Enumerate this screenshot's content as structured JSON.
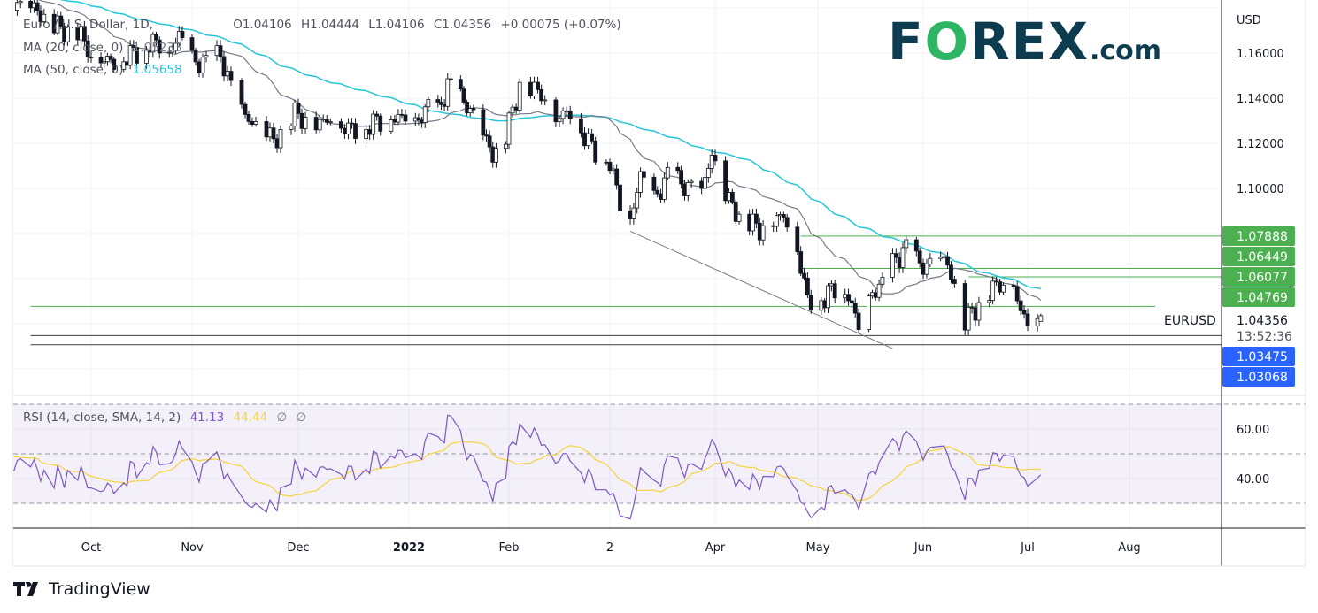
{
  "header": {
    "title": "Euro / U.S. Dollar, 1D, ",
    "ohlc": {
      "open": "O1.04106",
      "high": "H1.04444",
      "low": "L1.04106",
      "close": "C1.04356",
      "change": "+0.00075 (+0.07%)"
    },
    "ma20": {
      "label": "MA (20, close, 0)",
      "value": "1.05233",
      "color": "#787b86"
    },
    "ma50": {
      "label": "MA (50, close, 0)",
      "value": "1.05658",
      "color": "#26c6da"
    }
  },
  "logo": {
    "f": "F",
    "o": "O",
    "rex": "REX",
    "com": ".com"
  },
  "footer": {
    "brand": "TradingView"
  },
  "chart_data": [
    {
      "type": "candlestick",
      "symbol": "EURUSD",
      "interval": "1D",
      "currency": "USD",
      "last_price": "1.04356",
      "countdown": "13:52:36",
      "last_candle": {
        "open": 1.04106,
        "high": 1.04444,
        "low": 1.04106,
        "close": 1.04356
      },
      "close_path": [
        [
          "2021-07-01",
          1.185
        ],
        [
          "2021-08-02",
          1.187
        ],
        [
          "2021-09-01",
          1.184
        ],
        [
          "2021-09-14",
          1.18
        ],
        [
          "2021-09-20",
          1.172
        ],
        [
          "2021-09-28",
          1.168
        ],
        [
          "2021-10-01",
          1.158
        ],
        [
          "2021-10-08",
          1.156
        ],
        [
          "2021-10-14",
          1.16
        ],
        [
          "2021-10-20",
          1.165
        ],
        [
          "2021-10-25",
          1.16
        ],
        [
          "2021-10-28",
          1.168
        ],
        [
          "2021-11-01",
          1.157
        ],
        [
          "2021-11-05",
          1.155
        ],
        [
          "2021-11-09",
          1.159
        ],
        [
          "2021-11-12",
          1.145
        ],
        [
          "2021-11-16",
          1.132
        ],
        [
          "2021-11-22",
          1.125
        ],
        [
          "2021-11-24",
          1.121
        ],
        [
          "2021-11-30",
          1.133
        ],
        [
          "2021-12-06",
          1.128
        ],
        [
          "2021-12-10",
          1.131
        ],
        [
          "2021-12-15",
          1.126
        ],
        [
          "2021-12-20",
          1.128
        ],
        [
          "2021-12-28",
          1.132
        ],
        [
          "2022-01-03",
          1.129
        ],
        [
          "2022-01-07",
          1.136
        ],
        [
          "2022-01-10",
          1.133
        ],
        [
          "2022-01-13",
          1.146
        ],
        [
          "2022-01-17",
          1.14
        ],
        [
          "2022-01-21",
          1.133
        ],
        [
          "2022-01-27",
          1.115
        ],
        [
          "2022-01-31",
          1.123
        ],
        [
          "2022-02-04",
          1.146
        ],
        [
          "2022-02-10",
          1.142
        ],
        [
          "2022-02-14",
          1.131
        ],
        [
          "2022-02-18",
          1.134
        ],
        [
          "2022-02-24",
          1.118
        ],
        [
          "2022-03-01",
          1.112
        ],
        [
          "2022-03-04",
          1.093
        ],
        [
          "2022-03-07",
          1.086
        ],
        [
          "2022-03-10",
          1.106
        ],
        [
          "2022-03-14",
          1.095
        ],
        [
          "2022-03-18",
          1.105
        ],
        [
          "2022-03-22",
          1.102
        ],
        [
          "2022-03-28",
          1.098
        ],
        [
          "2022-03-31",
          1.116
        ],
        [
          "2022-04-04",
          1.097
        ],
        [
          "2022-04-08",
          1.088
        ],
        [
          "2022-04-14",
          1.082
        ],
        [
          "2022-04-21",
          1.088
        ],
        [
          "2022-04-25",
          1.073
        ],
        [
          "2022-04-28",
          1.05
        ],
        [
          "2022-05-03",
          1.052
        ],
        [
          "2022-05-06",
          1.056
        ],
        [
          "2022-05-10",
          1.053
        ],
        [
          "2022-05-13",
          1.038
        ],
        [
          "2022-05-17",
          1.054
        ],
        [
          "2022-05-20",
          1.057
        ],
        [
          "2022-05-24",
          1.069
        ],
        [
          "2022-05-27",
          1.073
        ],
        [
          "2022-06-01",
          1.065
        ],
        [
          "2022-06-06",
          1.07
        ],
        [
          "2022-06-09",
          1.063
        ],
        [
          "2022-06-13",
          1.041
        ],
        [
          "2022-06-15",
          1.045
        ],
        [
          "2022-06-17",
          1.049
        ],
        [
          "2022-06-22",
          1.057
        ],
        [
          "2022-06-27",
          1.058
        ],
        [
          "2022-06-29",
          1.044
        ],
        [
          "2022-07-01",
          1.042
        ],
        [
          "2022-07-05",
          1.04356
        ]
      ],
      "price_ticks": [
        "1.16000",
        "1.14000",
        "1.12000",
        "1.10000"
      ],
      "y_range": [
        1.0175,
        1.1835
      ],
      "time_ticks": [
        [
          "Oct",
          "2021-10-01"
        ],
        [
          "Nov",
          "2021-11-01"
        ],
        [
          "Dec",
          "2021-12-01"
        ],
        [
          "2022",
          "2022-01-01"
        ],
        [
          "Feb",
          "2022-02-01"
        ],
        [
          "2",
          "2022-03-01"
        ],
        [
          "Apr",
          "2022-04-01"
        ],
        [
          "May",
          "2022-05-01"
        ],
        [
          "Jun",
          "2022-06-01"
        ],
        [
          "Jul",
          "2022-07-01"
        ],
        [
          "Aug",
          "2022-08-01"
        ]
      ],
      "levels": [
        {
          "price": 1.07888,
          "label": "1.07888",
          "color": "#4caf50",
          "from": "2022-04-26"
        },
        {
          "price": 1.06449,
          "label": "1.06449",
          "color": "#4caf50",
          "from": "2022-04-26"
        },
        {
          "price": 1.06077,
          "label": "1.06077",
          "color": "#4caf50",
          "from": "2022-06-14"
        },
        {
          "price": 1.04769,
          "label": "1.04769",
          "color": "#4caf50",
          "from": "2021-09-13"
        },
        {
          "price": 1.03475,
          "label": "1.03475",
          "color": "#2962ff",
          "from": "2021-09-13"
        },
        {
          "price": 1.03068,
          "label": "1.03068",
          "color": "#2962ff",
          "from": "2021-09-13"
        }
      ],
      "trendline": {
        "from": [
          "2022-03-07",
          1.081
        ],
        "to": [
          "2022-05-23",
          1.029
        ],
        "color": "#787b86"
      }
    },
    {
      "type": "line",
      "indicator": "RSI",
      "label": "RSI (14, close, SMA, 14, 2)",
      "rsi_value": "41.13",
      "sma_value": "44.44",
      "extra": [
        "∅",
        "∅"
      ],
      "rsi_color": "#7e57c2",
      "sma_color": "#f5d43b",
      "bands": [
        70,
        50,
        30
      ],
      "ticks": [
        "60.00",
        "40.00"
      ],
      "y_range": [
        19.6,
        73.6
      ]
    }
  ]
}
